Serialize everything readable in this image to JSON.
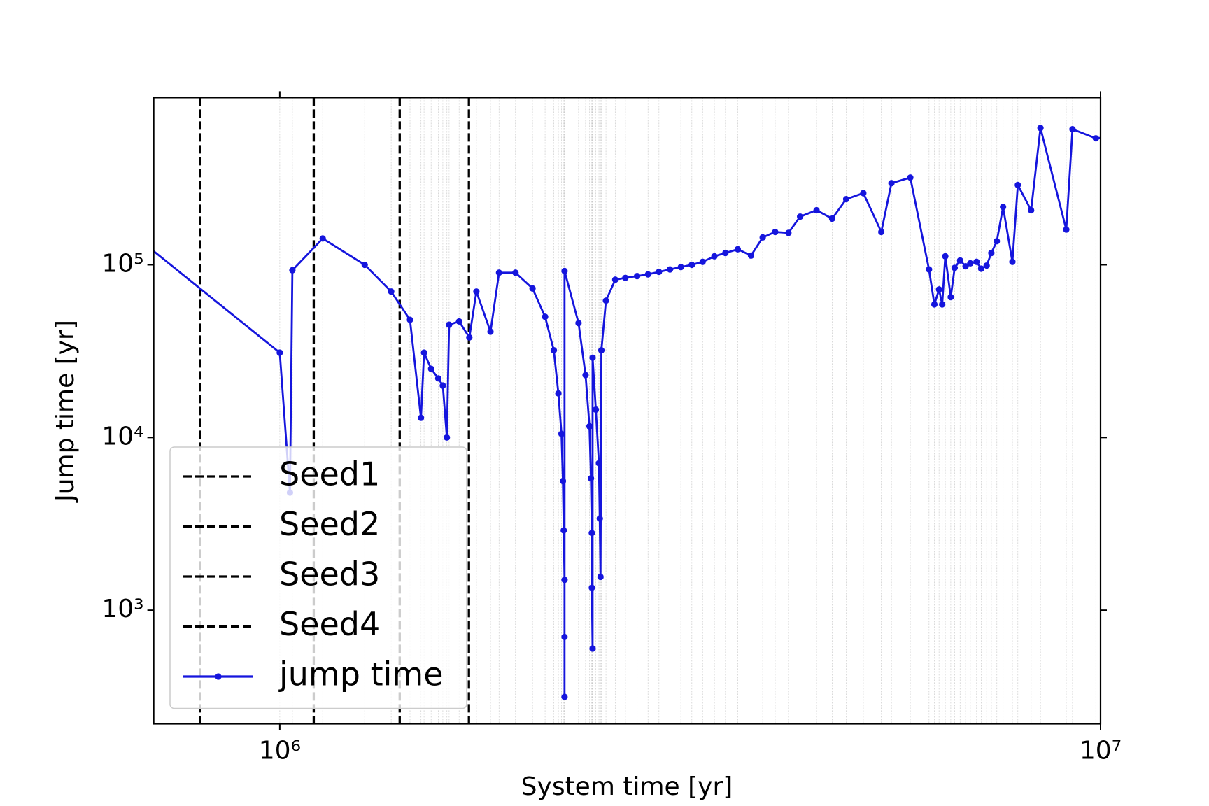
{
  "chart_data": {
    "type": "line",
    "xlabel": "System time [yr]",
    "ylabel": "Jump time [yr]",
    "xscale": "log",
    "yscale": "log",
    "xlim": [
      702000,
      10000000
    ],
    "ylim": [
      220,
      930000
    ],
    "xticks": [
      {
        "value": 1000000,
        "label": "10⁶"
      },
      {
        "value": 10000000,
        "label": "10⁷"
      }
    ],
    "yticks": [
      {
        "value": 1000,
        "label": "10³"
      },
      {
        "value": 10000,
        "label": "10⁴"
      },
      {
        "value": 100000,
        "label": "10⁵"
      }
    ],
    "grid": "x",
    "legend": "lower left",
    "vlines": [
      {
        "name": "Seed1",
        "x": 800000,
        "color": "#000000"
      },
      {
        "name": "Seed2",
        "x": 1100000,
        "color": "#000000"
      },
      {
        "name": "Seed3",
        "x": 1400000,
        "color": "#000000"
      },
      {
        "name": "Seed4",
        "x": 1700000,
        "color": "#000000"
      }
    ],
    "series": [
      {
        "name": "jump time",
        "color": "#1515dd",
        "x": [
          650000,
          1000000,
          1029000,
          1036000,
          1128000,
          1269000,
          1367000,
          1441000,
          1486000,
          1499000,
          1529000,
          1560000,
          1580000,
          1598000,
          1608000,
          1654000,
          1702000,
          1736000,
          1806000,
          1850000,
          1937000,
          2032000,
          2105000,
          2157000,
          2185000,
          2204000,
          2213000,
          2218000,
          2223000,
          2223000,
          2223000,
          2223000,
          2312000,
          2358000,
          2384000,
          2394000,
          2400000,
          2400000,
          2405000,
          2405000,
          2427000,
          2448000,
          2454000,
          2459000,
          2465000,
          2497000,
          2563000,
          2637000,
          2725000,
          2810000,
          2897000,
          2988000,
          3081000,
          3177000,
          3275000,
          3385000,
          3491000,
          3614000,
          3751000,
          3876000,
          4014000,
          4166000,
          4305000,
          4508000,
          4710000,
          4899000,
          5140000,
          5406000,
          5562000,
          5864000,
          6180000,
          6274000,
          6357000,
          6413000,
          6469000,
          6569000,
          6641000,
          6744000,
          6848000,
          6939000,
          7062000,
          7155000,
          7265000,
          7361000,
          7475000,
          7607000,
          7809000,
          7929000,
          8230000,
          8449000,
          9083000,
          9243000,
          9870000,
          10300000
        ],
        "values": [
          161000,
          31000,
          4800,
          93000,
          142000,
          100000,
          70000,
          48000,
          13000,
          31000,
          25000,
          22000,
          20000,
          10000,
          45000,
          47000,
          38000,
          70000,
          41000,
          90000,
          90000,
          73000,
          50000,
          32000,
          18000,
          10500,
          5600,
          2900,
          1500,
          700,
          315,
          92000,
          46000,
          23000,
          11600,
          5800,
          2800,
          1350,
          600,
          29000,
          14500,
          7100,
          3400,
          1560,
          32000,
          62000,
          82000,
          84000,
          86000,
          88000,
          91000,
          94000,
          97000,
          100000,
          104000,
          112000,
          117000,
          123000,
          113000,
          144000,
          155000,
          153000,
          190000,
          207000,
          185000,
          240000,
          260000,
          155000,
          297000,
          320000,
          94000,
          59000,
          72000,
          59000,
          112000,
          65000,
          96000,
          106000,
          98000,
          102000,
          104000,
          95000,
          99000,
          117000,
          137000,
          216000,
          104000,
          290000,
          207000,
          620000,
          160000,
          610000,
          540000,
          550000
        ]
      }
    ]
  }
}
